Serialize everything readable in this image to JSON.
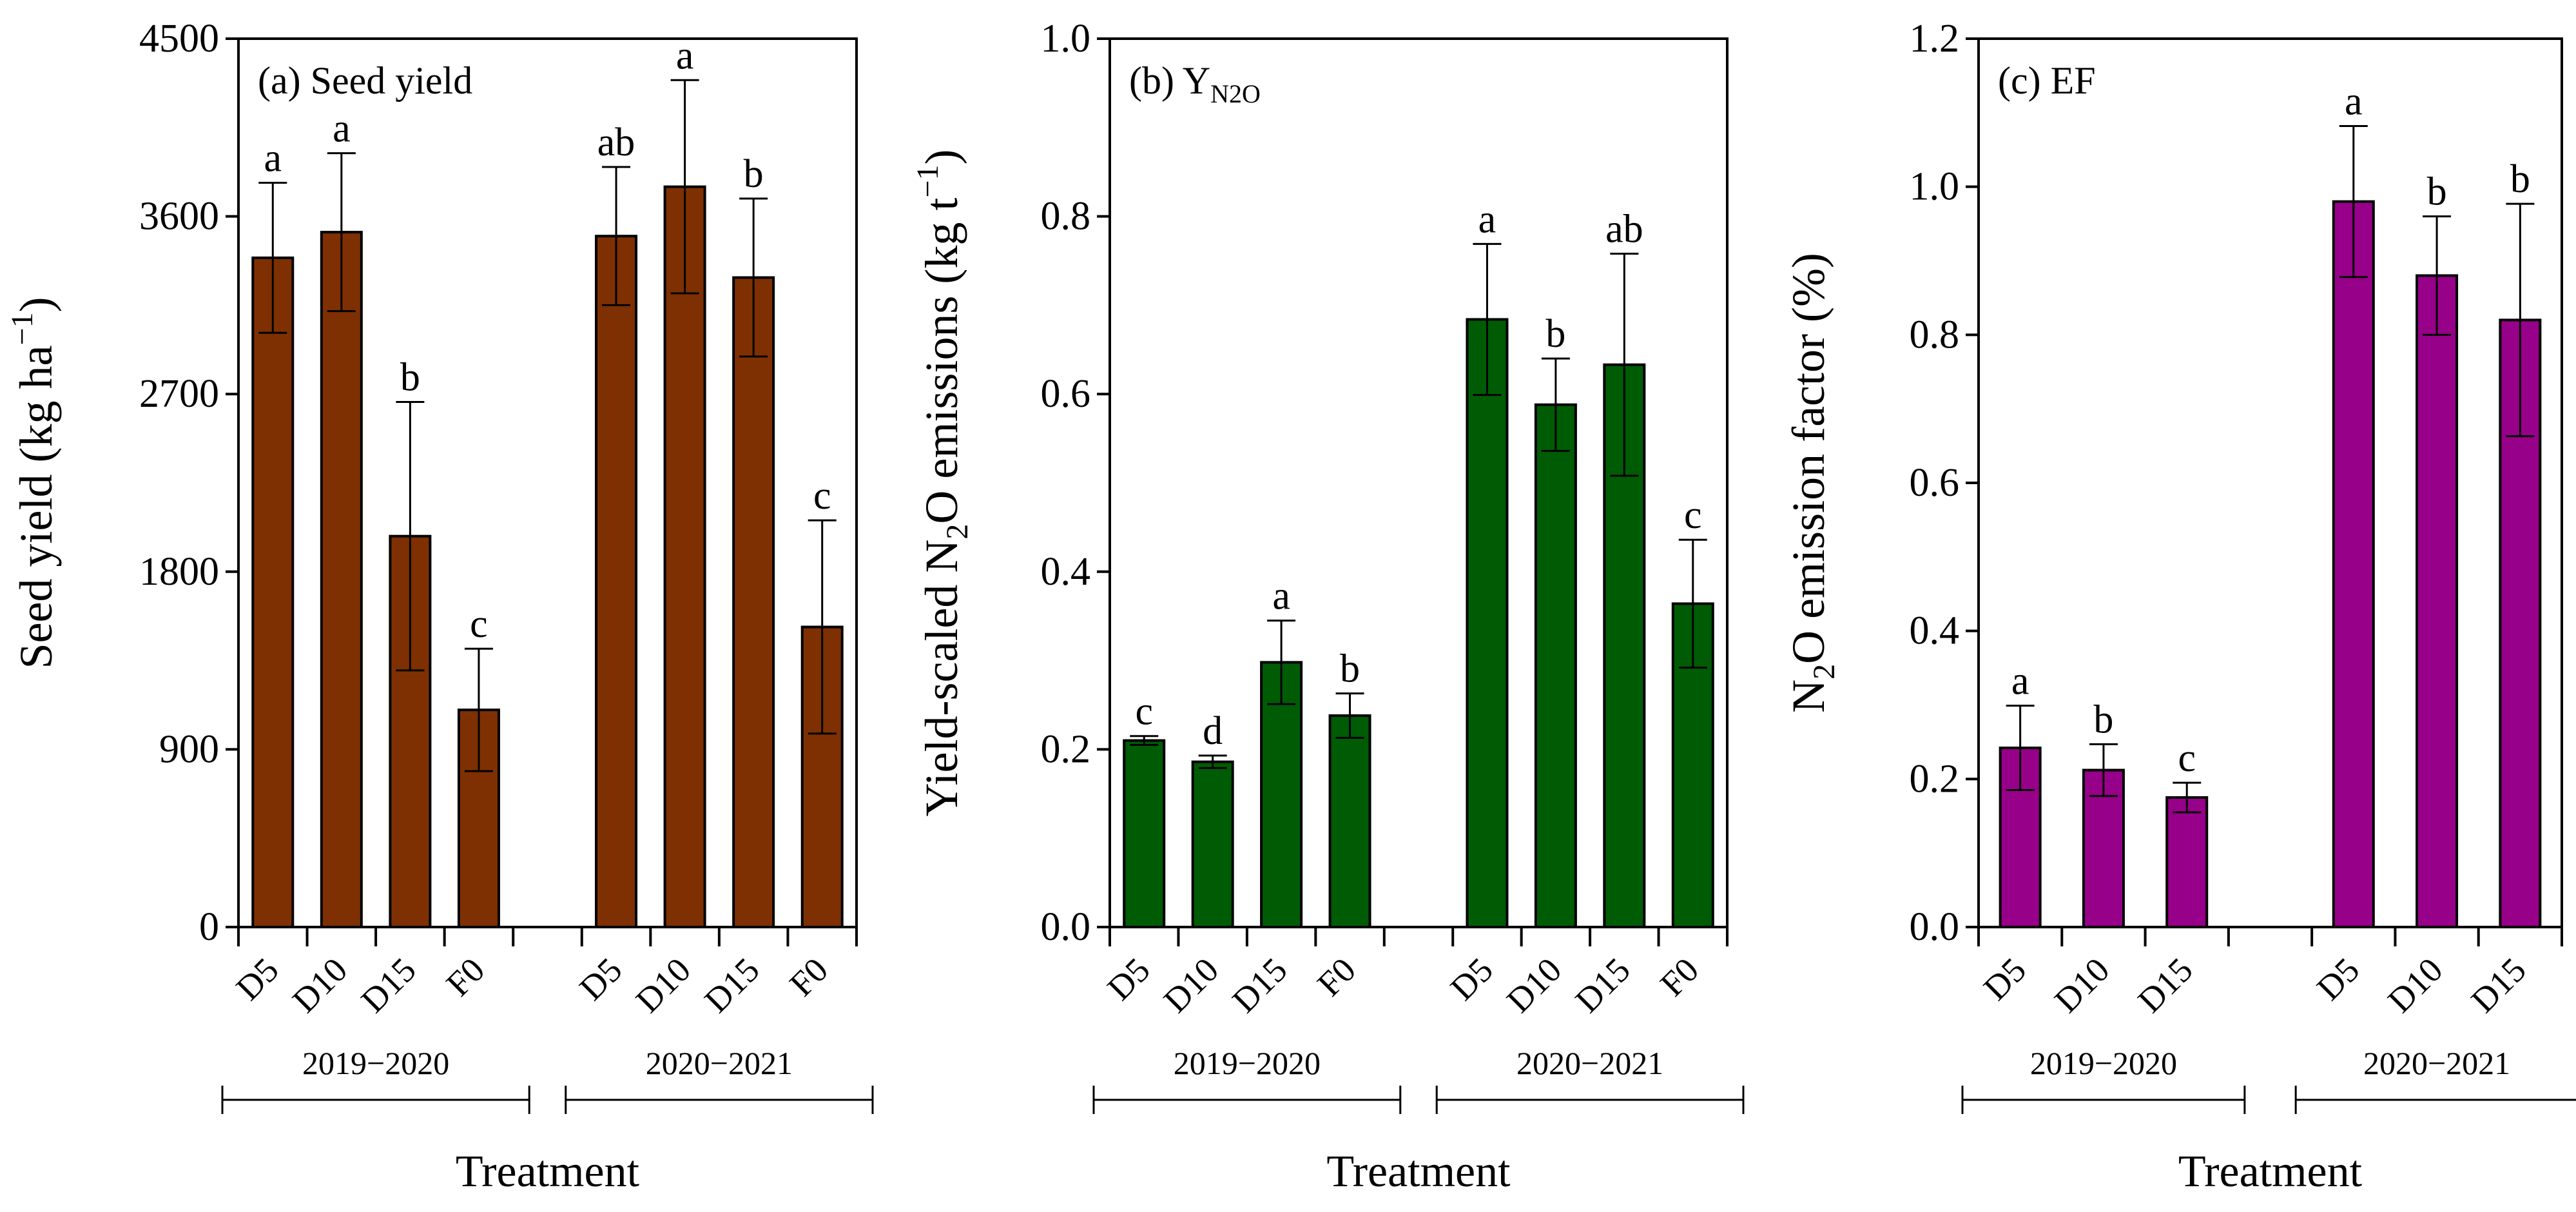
{
  "chart_data": [
    {
      "type": "bar",
      "panel_label": "(a) Seed yield",
      "ylabel": "Seed yield (kg ha⁻¹)",
      "ylabel_main": "Seed yield (kg ha",
      "ylabel_sup": "−1",
      "ylabel_end": ")",
      "xlabel": "Treatment",
      "ylim": [
        0,
        4500
      ],
      "yticks": [
        0,
        900,
        1800,
        2700,
        3600,
        4500
      ],
      "ytick_labels": [
        "0",
        "900",
        "1800",
        "2700",
        "3600",
        "4500"
      ],
      "color": "#7E3002",
      "groups": [
        {
          "name": "2019−2020",
          "categories": [
            "D5",
            "D10",
            "D15",
            "F0"
          ],
          "values": [
            3390,
            3520,
            1980,
            1100
          ],
          "errors": [
            380,
            400,
            680,
            310
          ],
          "letters": [
            "a",
            "a",
            "b",
            "c"
          ]
        },
        {
          "name": "2020−2021",
          "categories": [
            "D5",
            "D10",
            "D15",
            "F0"
          ],
          "values": [
            3500,
            3750,
            3290,
            1520
          ],
          "errors": [
            350,
            540,
            400,
            540
          ],
          "letters": [
            "ab",
            "a",
            "b",
            "c"
          ]
        }
      ]
    },
    {
      "type": "bar",
      "panel_label": "(b) Y",
      "panel_label_sub": "N2O",
      "ylabel": "Yield-scaled N₂O emissions (kg t⁻¹)",
      "ylabel_main": "Yield-scaled N",
      "ylabel_sub": "2",
      "ylabel_mid": "O emissions (kg t",
      "ylabel_sup": "−1",
      "ylabel_end": ")",
      "xlabel": "Treatment",
      "ylim": [
        0,
        1.0
      ],
      "yticks": [
        0,
        0.2,
        0.4,
        0.6,
        0.8,
        1.0
      ],
      "ytick_labels": [
        "0.0",
        "0.2",
        "0.4",
        "0.6",
        "0.8",
        "1.0"
      ],
      "color": "#005B05",
      "groups": [
        {
          "name": "2019−2020",
          "categories": [
            "D5",
            "D10",
            "D15",
            "F0"
          ],
          "values": [
            0.21,
            0.186,
            0.298,
            0.238
          ],
          "errors": [
            0.005,
            0.007,
            0.047,
            0.025
          ],
          "letters": [
            "c",
            "d",
            "a",
            "b"
          ]
        },
        {
          "name": "2020−2021",
          "categories": [
            "D5",
            "D10",
            "D15",
            "F0"
          ],
          "values": [
            0.684,
            0.588,
            0.633,
            0.364
          ],
          "errors": [
            0.085,
            0.052,
            0.125,
            0.072
          ],
          "letters": [
            "a",
            "b",
            "ab",
            "c"
          ]
        }
      ]
    },
    {
      "type": "bar",
      "panel_label": "(c) EF",
      "ylabel": "N₂O emission factor (%)",
      "ylabel_main": "N",
      "ylabel_sub": "2",
      "ylabel_mid": "O emission factor (%)",
      "xlabel": "Treatment",
      "ylim": [
        0,
        1.2
      ],
      "yticks": [
        0,
        0.2,
        0.4,
        0.6,
        0.8,
        1.0,
        1.2
      ],
      "ytick_labels": [
        "0.0",
        "0.2",
        "0.4",
        "0.6",
        "0.8",
        "1.0",
        "1.2"
      ],
      "color": "#970088",
      "groups": [
        {
          "name": "2019−2020",
          "categories": [
            "D5",
            "D10",
            "D15"
          ],
          "values": [
            0.242,
            0.212,
            0.175
          ],
          "errors": [
            0.057,
            0.035,
            0.02
          ],
          "letters": [
            "a",
            "b",
            "c"
          ]
        },
        {
          "name": "2020−2021",
          "categories": [
            "D5",
            "D10",
            "D15"
          ],
          "values": [
            0.98,
            0.88,
            0.82
          ],
          "errors": [
            0.102,
            0.08,
            0.157
          ],
          "letters": [
            "a",
            "b",
            "b"
          ]
        }
      ]
    }
  ]
}
